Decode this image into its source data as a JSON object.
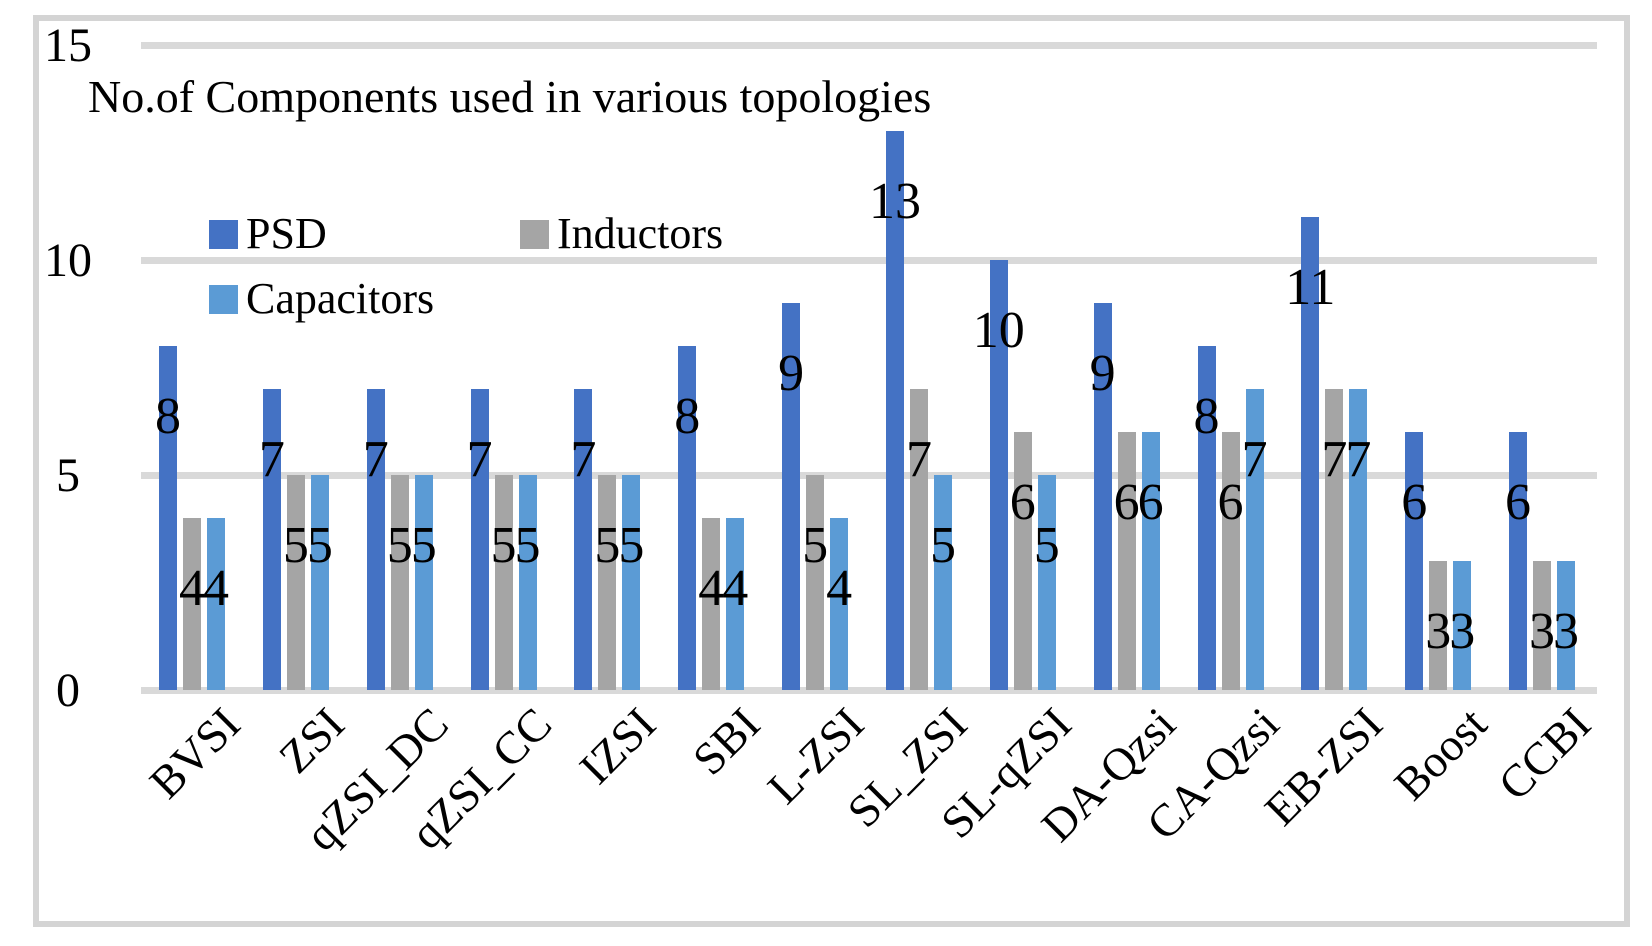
{
  "chart_data": {
    "type": "bar",
    "title": "No.of Components used in various topologies",
    "categories": [
      "BVSI",
      "ZSI",
      "qZSI_DC",
      "qZSI_CC",
      "IZSI",
      "SBI",
      "L-ZSI",
      "SL_ZSI",
      "SL-qZSI",
      "DA-Qzsi",
      "CA-Qzsi",
      "EB-ZSI",
      "Boost",
      "CCBI"
    ],
    "series": [
      {
        "name": "PSD",
        "color": "#4472C4",
        "values": [
          8,
          7,
          7,
          7,
          7,
          8,
          9,
          13,
          10,
          9,
          8,
          11,
          6,
          6
        ]
      },
      {
        "name": "Inductors",
        "color": "#A5A5A5",
        "values": [
          4,
          5,
          5,
          5,
          5,
          4,
          5,
          7,
          6,
          6,
          6,
          7,
          3,
          3
        ]
      },
      {
        "name": "Capacitors",
        "color": "#5B9BD5",
        "values": [
          4,
          5,
          5,
          5,
          5,
          4,
          4,
          5,
          5,
          6,
          7,
          7,
          3,
          3
        ]
      }
    ],
    "y_ticks": [
      0,
      5,
      10,
      15
    ],
    "ylim": [
      0,
      15
    ],
    "grid": "horizontal",
    "legend_position": "top-left inside plot, two rows",
    "data_labels": "inside-end",
    "colors": {
      "gridline": "#D9D9D9",
      "frame_border": "#D4D4D4",
      "background": "#FFFFFF",
      "text": "#000000"
    }
  }
}
